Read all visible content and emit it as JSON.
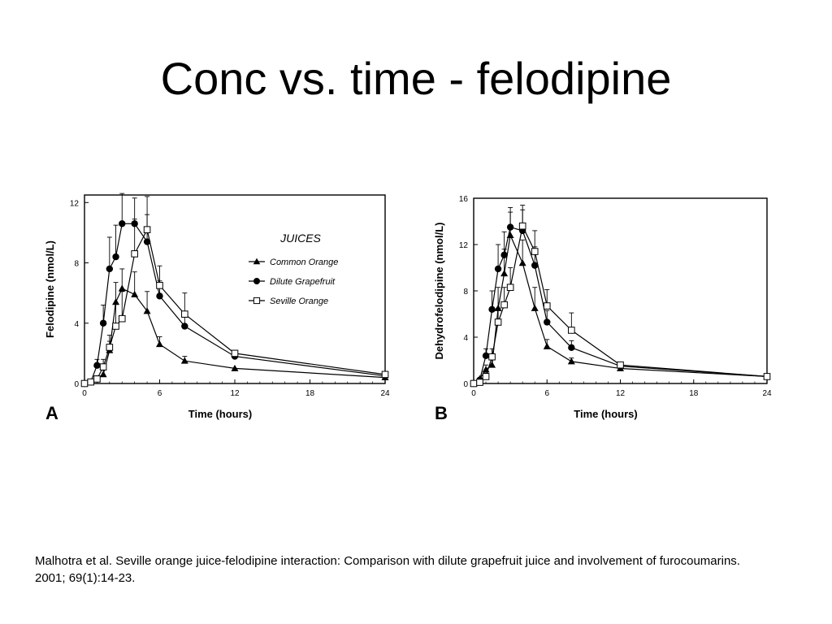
{
  "slide": {
    "title": "Conc vs. time - felodipine",
    "citation": "Malhotra et al. Seville orange juice-felodipine interaction: Comparison with dilute grapefruit juice and involvement of furocoumarins. 2001; 69(1):14-23."
  },
  "chart_data": [
    {
      "type": "line",
      "panel_label": "A",
      "xlabel": "Time (hours)",
      "ylabel": "Felodipine (nmol/L)",
      "xlim": [
        0,
        24
      ],
      "ylim": [
        0,
        12.5
      ],
      "xticks": [
        0,
        6,
        12,
        18,
        24
      ],
      "yticks": [
        0,
        4,
        8,
        12
      ],
      "grid": false,
      "legend": {
        "title": "JUICES",
        "placement": "top-right"
      },
      "series": [
        {
          "name": "Common Orange",
          "marker": "triangle-filled",
          "x": [
            0,
            0.5,
            1,
            1.5,
            2,
            2.5,
            3,
            4,
            5,
            6,
            8,
            12,
            24
          ],
          "y": [
            0,
            0.1,
            0.3,
            0.6,
            2.2,
            5.4,
            6.3,
            5.9,
            4.8,
            2.6,
            1.5,
            1.0,
            0.4
          ],
          "err": [
            0,
            0,
            0.2,
            0.3,
            0.6,
            1.3,
            1.3,
            1.5,
            1.3,
            0.5,
            0.3,
            0,
            0
          ]
        },
        {
          "name": "Dilute Grapefruit",
          "marker": "circle-filled",
          "x": [
            0,
            0.5,
            1,
            1.5,
            2,
            2.5,
            3,
            4,
            5,
            6,
            8,
            12,
            24
          ],
          "y": [
            0,
            0.1,
            1.2,
            4.0,
            7.6,
            8.4,
            10.6,
            10.6,
            9.4,
            5.8,
            3.8,
            1.8,
            0.5
          ],
          "err": [
            0,
            0,
            0.4,
            1.2,
            2.1,
            2.1,
            2.0,
            1.7,
            1.8,
            1.0,
            0.6,
            0.2,
            0
          ]
        },
        {
          "name": "Seville Orange",
          "marker": "square-open",
          "x": [
            0,
            0.5,
            1,
            1.5,
            2,
            2.5,
            3,
            4,
            5,
            6,
            8,
            12,
            24
          ],
          "y": [
            0,
            0.1,
            0.3,
            1.1,
            2.4,
            3.8,
            4.3,
            8.6,
            10.2,
            6.5,
            4.6,
            2.0,
            0.6
          ],
          "err": [
            0,
            0,
            0.2,
            0.5,
            0.8,
            1.5,
            1.8,
            2.3,
            2.2,
            1.3,
            1.4,
            0.2,
            0
          ]
        }
      ]
    },
    {
      "type": "line",
      "panel_label": "B",
      "xlabel": "Time (hours)",
      "ylabel": "Dehydrofelodipine (nmol/L)",
      "xlim": [
        0,
        24
      ],
      "ylim": [
        0,
        16
      ],
      "xticks": [
        0,
        6,
        12,
        18,
        24
      ],
      "yticks": [
        0,
        4,
        8,
        12,
        16
      ],
      "grid": false,
      "legend": null,
      "series": [
        {
          "name": "Common Orange",
          "marker": "triangle-filled",
          "x": [
            0,
            0.5,
            1,
            1.5,
            2,
            2.5,
            3,
            4,
            5,
            6,
            8,
            12,
            24
          ],
          "y": [
            0,
            0.4,
            1.2,
            1.6,
            6.5,
            9.5,
            12.8,
            10.4,
            6.5,
            3.2,
            1.9,
            1.3,
            0.6
          ],
          "err": [
            0,
            0,
            0.4,
            0.6,
            1.8,
            2.1,
            2.0,
            2.0,
            1.8,
            0.6,
            0.3,
            0.2,
            0
          ]
        },
        {
          "name": "Dilute Grapefruit",
          "marker": "circle-filled",
          "x": [
            0,
            0.5,
            1,
            1.5,
            2,
            2.5,
            3,
            4,
            5,
            6,
            8,
            12,
            24
          ],
          "y": [
            0,
            0.3,
            2.4,
            6.4,
            9.9,
            11.1,
            13.5,
            13.2,
            10.2,
            5.3,
            3.1,
            1.5,
            0.6
          ],
          "err": [
            0,
            0,
            0.6,
            1.6,
            2.1,
            2.0,
            1.7,
            1.8,
            1.6,
            1.0,
            0.6,
            0.2,
            0
          ]
        },
        {
          "name": "Seville Orange",
          "marker": "square-open",
          "x": [
            0,
            0.5,
            1,
            1.5,
            2,
            2.5,
            3,
            4,
            5,
            6,
            8,
            12,
            24
          ],
          "y": [
            0,
            0.1,
            0.6,
            2.3,
            5.3,
            6.8,
            8.3,
            13.6,
            11.4,
            6.7,
            4.6,
            1.6,
            0.6
          ],
          "err": [
            0,
            0,
            0.3,
            0.7,
            1.2,
            1.5,
            1.7,
            1.8,
            1.8,
            1.4,
            1.5,
            0.2,
            0
          ]
        }
      ]
    }
  ]
}
